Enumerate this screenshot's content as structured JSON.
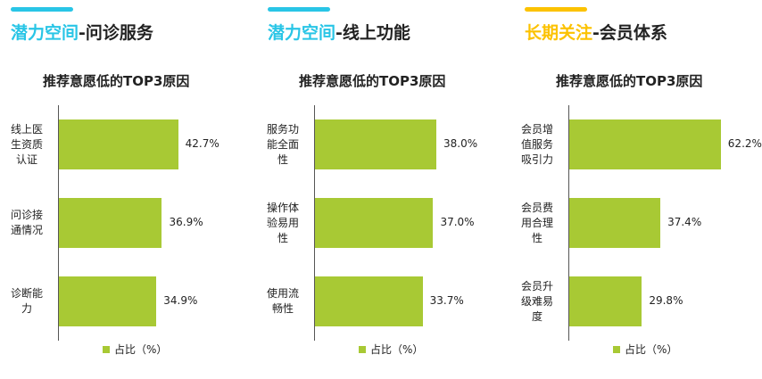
{
  "colors": {
    "bar": "#a8c934",
    "accent_cyan": "#29c5e6",
    "accent_yellow": "#fcc200",
    "title_dark": "#222222"
  },
  "panels": [
    {
      "title_accent": "潜力空间",
      "title_rest": "-问诊服务",
      "accent_color": "#29c5e6"
    },
    {
      "title_accent": "潜力空间",
      "title_rest": "-线上功能",
      "accent_color": "#29c5e6"
    },
    {
      "title_accent": "长期关注",
      "title_rest": "-会员体系",
      "accent_color": "#fcc200"
    }
  ],
  "chart_data": [
    {
      "type": "bar",
      "orientation": "horizontal",
      "title": "推荐意愿低的TOP3原因",
      "categories": [
        [
          "线上医",
          "生资质",
          "认证"
        ],
        [
          "问诊接",
          "通情况"
        ],
        [
          "诊断能",
          "力"
        ]
      ],
      "values": [
        42.7,
        36.9,
        34.9
      ],
      "value_labels": [
        "42.7%",
        "36.9%",
        "34.9%"
      ],
      "legend": [
        "占比（%）"
      ],
      "xlim": [
        0,
        100
      ]
    },
    {
      "type": "bar",
      "orientation": "horizontal",
      "title": "推荐意愿低的TOP3原因",
      "categories": [
        [
          "服务功",
          "能全面",
          "性"
        ],
        [
          "操作体",
          "验易用",
          "性"
        ],
        [
          "使用流",
          "畅性"
        ]
      ],
      "values": [
        38.0,
        37.0,
        33.7
      ],
      "value_labels": [
        "38.0%",
        "37.0%",
        "33.7%"
      ],
      "legend": [
        "占比（%）"
      ],
      "xlim": [
        0,
        100
      ]
    },
    {
      "type": "bar",
      "orientation": "horizontal",
      "title": "推荐意愿低的TOP3原因",
      "categories": [
        [
          "会员增",
          "值服务",
          "吸引力"
        ],
        [
          "会员费",
          "用合理",
          "性"
        ],
        [
          "会员升",
          "级难易",
          "度"
        ]
      ],
      "values": [
        62.2,
        37.4,
        29.8
      ],
      "value_labels": [
        "62.2%",
        "37.4%",
        "29.8%"
      ],
      "legend": [
        "占比（%）"
      ],
      "xlim": [
        0,
        100
      ]
    }
  ]
}
